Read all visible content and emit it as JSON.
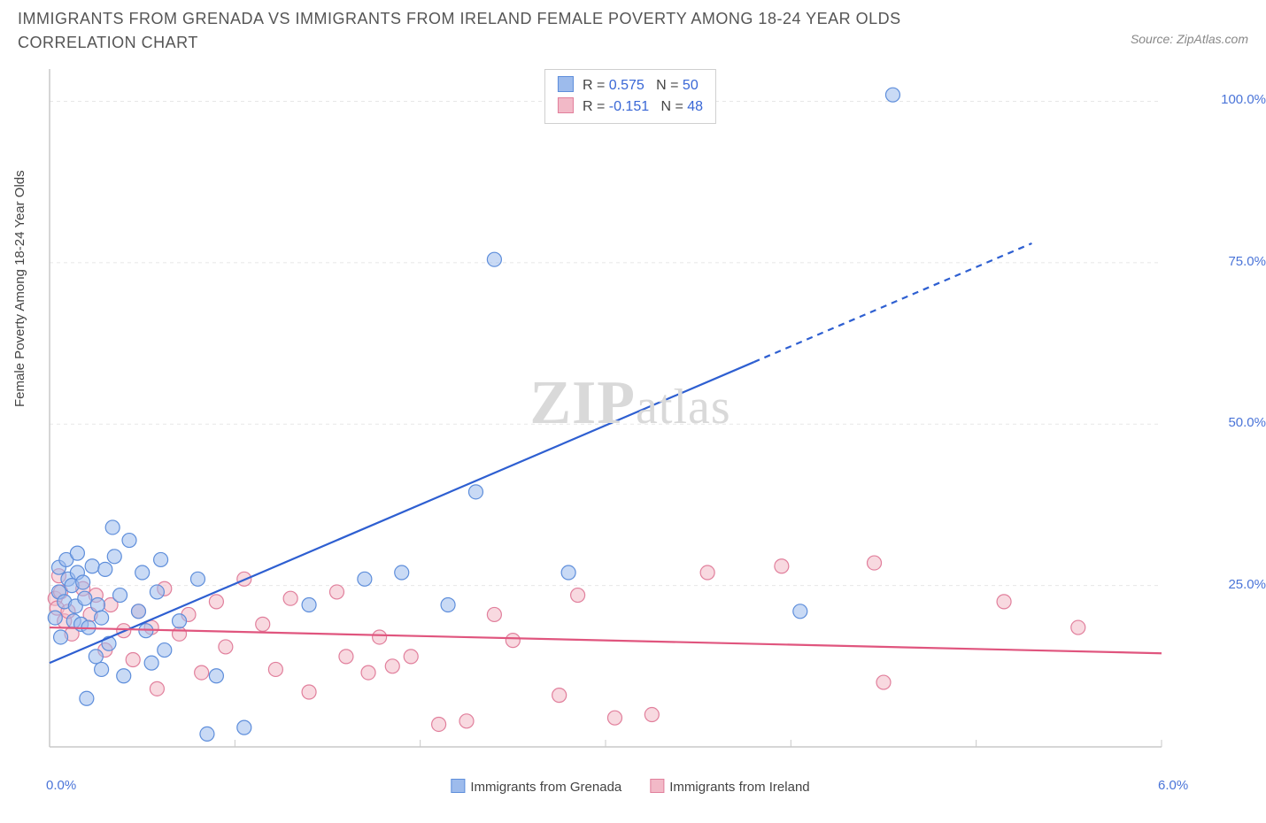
{
  "title": "IMMIGRANTS FROM GRENADA VS IMMIGRANTS FROM IRELAND FEMALE POVERTY AMONG 18-24 YEAR OLDS CORRELATION CHART",
  "source": "Source: ZipAtlas.com",
  "y_axis_label": "Female Poverty Among 18-24 Year Olds",
  "watermark_zip": "ZIP",
  "watermark_atlas": "atlas",
  "chart": {
    "type": "scatter_with_trend",
    "background_color": "#ffffff",
    "grid_color": "#e7e7e7",
    "axis_line_color": "#c9c9c9",
    "tick_color": "#c9c9c9",
    "xlim": [
      0.0,
      6.0
    ],
    "ylim": [
      0.0,
      105.0
    ],
    "x_ticks_minor_step": 1.0,
    "x_tick_labels": [
      {
        "v": 0.0,
        "label": "0.0%"
      },
      {
        "v": 6.0,
        "label": "6.0%"
      }
    ],
    "y_gridlines": [
      25.0,
      50.0,
      75.0,
      100.0
    ],
    "y_tick_labels": [
      {
        "v": 25.0,
        "label": "25.0%"
      },
      {
        "v": 50.0,
        "label": "50.0%"
      },
      {
        "v": 75.0,
        "label": "75.0%"
      },
      {
        "v": 100.0,
        "label": "100.0%"
      }
    ],
    "label_color": "#4a74d8",
    "label_fontsize": 15,
    "marker_radius": 8,
    "marker_stroke_width": 1.2,
    "trend_line_width": 2.2,
    "series": {
      "grenada": {
        "legend_label": "Immigrants from Grenada",
        "fill": "#9dbbec",
        "stroke": "#5e8edb",
        "fill_opacity": 0.55,
        "points": [
          [
            0.03,
            20.0
          ],
          [
            0.05,
            24.0
          ],
          [
            0.05,
            27.8
          ],
          [
            0.06,
            17.0
          ],
          [
            0.08,
            22.5
          ],
          [
            0.09,
            29.0
          ],
          [
            0.1,
            26.0
          ],
          [
            0.12,
            25.0
          ],
          [
            0.13,
            19.5
          ],
          [
            0.14,
            21.8
          ],
          [
            0.15,
            30.0
          ],
          [
            0.15,
            27.0
          ],
          [
            0.17,
            19.0
          ],
          [
            0.18,
            25.5
          ],
          [
            0.19,
            23.0
          ],
          [
            0.2,
            7.5
          ],
          [
            0.21,
            18.5
          ],
          [
            0.23,
            28.0
          ],
          [
            0.25,
            14.0
          ],
          [
            0.26,
            22.0
          ],
          [
            0.28,
            20.0
          ],
          [
            0.28,
            12.0
          ],
          [
            0.3,
            27.5
          ],
          [
            0.32,
            16.0
          ],
          [
            0.34,
            34.0
          ],
          [
            0.35,
            29.5
          ],
          [
            0.38,
            23.5
          ],
          [
            0.4,
            11.0
          ],
          [
            0.43,
            32.0
          ],
          [
            0.48,
            21.0
          ],
          [
            0.5,
            27.0
          ],
          [
            0.52,
            18.0
          ],
          [
            0.55,
            13.0
          ],
          [
            0.58,
            24.0
          ],
          [
            0.6,
            29.0
          ],
          [
            0.62,
            15.0
          ],
          [
            0.7,
            19.5
          ],
          [
            0.8,
            26.0
          ],
          [
            0.85,
            2.0
          ],
          [
            0.9,
            11.0
          ],
          [
            1.05,
            3.0
          ],
          [
            1.4,
            22.0
          ],
          [
            1.7,
            26.0
          ],
          [
            1.9,
            27.0
          ],
          [
            2.15,
            22.0
          ],
          [
            2.3,
            39.5
          ],
          [
            2.4,
            75.5
          ],
          [
            2.8,
            27.0
          ],
          [
            4.05,
            21.0
          ],
          [
            4.55,
            101.0
          ]
        ],
        "trend": {
          "y0": 13.0,
          "y1": 78.0,
          "solid_until_x": 3.8,
          "dashed_to_x": 5.3
        }
      },
      "ireland": {
        "legend_label": "Immigrants from Ireland",
        "fill": "#f2b9c7",
        "stroke": "#e17f9c",
        "fill_opacity": 0.55,
        "points": [
          [
            0.03,
            23.0
          ],
          [
            0.04,
            21.5
          ],
          [
            0.05,
            26.5
          ],
          [
            0.06,
            24.0
          ],
          [
            0.08,
            19.5
          ],
          [
            0.1,
            21.0
          ],
          [
            0.12,
            17.5
          ],
          [
            0.18,
            24.5
          ],
          [
            0.22,
            20.5
          ],
          [
            0.25,
            23.5
          ],
          [
            0.3,
            15.0
          ],
          [
            0.33,
            22.0
          ],
          [
            0.4,
            18.0
          ],
          [
            0.45,
            13.5
          ],
          [
            0.48,
            21.0
          ],
          [
            0.55,
            18.5
          ],
          [
            0.58,
            9.0
          ],
          [
            0.62,
            24.5
          ],
          [
            0.7,
            17.5
          ],
          [
            0.75,
            20.5
          ],
          [
            0.82,
            11.5
          ],
          [
            0.9,
            22.5
          ],
          [
            0.95,
            15.5
          ],
          [
            1.05,
            26.0
          ],
          [
            1.15,
            19.0
          ],
          [
            1.22,
            12.0
          ],
          [
            1.3,
            23.0
          ],
          [
            1.4,
            8.5
          ],
          [
            1.55,
            24.0
          ],
          [
            1.6,
            14.0
          ],
          [
            1.72,
            11.5
          ],
          [
            1.78,
            17.0
          ],
          [
            1.85,
            12.5
          ],
          [
            1.95,
            14.0
          ],
          [
            2.1,
            3.5
          ],
          [
            2.25,
            4.0
          ],
          [
            2.4,
            20.5
          ],
          [
            2.5,
            16.5
          ],
          [
            2.75,
            8.0
          ],
          [
            2.85,
            23.5
          ],
          [
            3.05,
            4.5
          ],
          [
            3.25,
            5.0
          ],
          [
            3.55,
            27.0
          ],
          [
            3.95,
            28.0
          ],
          [
            4.45,
            28.5
          ],
          [
            4.5,
            10.0
          ],
          [
            5.15,
            22.5
          ],
          [
            5.55,
            18.5
          ]
        ],
        "trend": {
          "y0": 18.5,
          "y1": 14.5,
          "solid_until_x": 6.0,
          "dashed_to_x": 6.0
        }
      }
    },
    "trend_colors": {
      "grenada": "#2e5fd1",
      "ireland": "#e0557e"
    },
    "stats_box": {
      "rows": [
        {
          "swatch_fill": "#9dbbec",
          "swatch_stroke": "#5e8edb",
          "r": "0.575",
          "n": "50"
        },
        {
          "swatch_fill": "#f2b9c7",
          "swatch_stroke": "#e17f9c",
          "r": "-0.151",
          "n": "48"
        }
      ],
      "label_r": "R =",
      "label_n": "N ="
    }
  }
}
